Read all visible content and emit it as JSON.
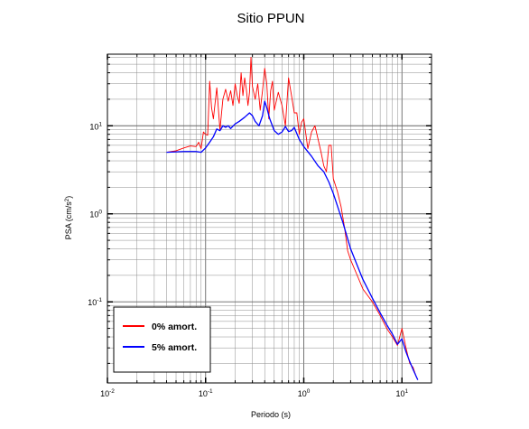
{
  "chart_data": {
    "type": "line",
    "title": "Sitio PPUN",
    "xlabel": "Periodo (s)",
    "ylabel": {
      "prefix": "PSA (cm/s",
      "exp": "2",
      "suffix": ")"
    },
    "xscale": "log",
    "yscale": "log",
    "xlim": [
      0.01,
      20
    ],
    "ylim": [
      0.012,
      65
    ],
    "grid": true,
    "legend_position": "bottom-left",
    "x_ticks": [
      {
        "base": "10",
        "exp": "-2"
      },
      {
        "base": "10",
        "exp": "-1"
      },
      {
        "base": "10",
        "exp": "0"
      },
      {
        "base": "10",
        "exp": "1"
      }
    ],
    "y_ticks": [
      {
        "base": "10",
        "exp": "-1"
      },
      {
        "base": "10",
        "exp": "0"
      },
      {
        "base": "10",
        "exp": "1"
      }
    ],
    "series": [
      {
        "name": "0% amort.",
        "color": "#ff0000",
        "x": [
          0.04,
          0.05,
          0.06,
          0.07,
          0.08,
          0.085,
          0.09,
          0.095,
          0.1,
          0.105,
          0.11,
          0.115,
          0.12,
          0.13,
          0.14,
          0.15,
          0.16,
          0.17,
          0.18,
          0.19,
          0.2,
          0.21,
          0.22,
          0.23,
          0.24,
          0.25,
          0.26,
          0.27,
          0.28,
          0.29,
          0.3,
          0.32,
          0.34,
          0.36,
          0.38,
          0.4,
          0.42,
          0.44,
          0.46,
          0.48,
          0.5,
          0.55,
          0.6,
          0.65,
          0.7,
          0.75,
          0.8,
          0.85,
          0.9,
          0.95,
          1.0,
          1.1,
          1.2,
          1.3,
          1.4,
          1.5,
          1.6,
          1.7,
          1.8,
          1.9,
          2.0,
          2.2,
          2.4,
          2.6,
          2.8,
          3.0,
          3.5,
          4.0,
          5.0,
          6.0,
          7.0,
          8.0,
          9.0,
          10.0,
          11.0,
          12.0,
          13.0,
          14.0
        ],
        "values": [
          5.0,
          5.2,
          5.6,
          5.9,
          5.8,
          6.5,
          5.5,
          8.5,
          8.0,
          7.8,
          32.0,
          16.0,
          12.0,
          27.0,
          9.0,
          20.0,
          26.0,
          19.0,
          25.0,
          17.0,
          30.0,
          22.0,
          18.0,
          40.0,
          22.0,
          35.0,
          26.0,
          17.0,
          24.0,
          60.0,
          28.0,
          20.0,
          30.0,
          15.0,
          25.0,
          45.0,
          30.0,
          12.0,
          25.0,
          32.0,
          15.0,
          24.0,
          17.0,
          10.0,
          35.0,
          22.0,
          14.0,
          14.0,
          8.0,
          11.0,
          12.0,
          5.5,
          8.5,
          10.0,
          7.0,
          5.0,
          3.5,
          3.0,
          6.0,
          6.0,
          2.5,
          1.8,
          1.2,
          0.7,
          0.38,
          0.3,
          0.2,
          0.14,
          0.1,
          0.07,
          0.05,
          0.04,
          0.032,
          0.05,
          0.03,
          0.02,
          0.018,
          0.014
        ]
      },
      {
        "name": "5% amort.",
        "color": "#0000ff",
        "x": [
          0.04,
          0.06,
          0.08,
          0.09,
          0.1,
          0.11,
          0.12,
          0.13,
          0.14,
          0.15,
          0.16,
          0.17,
          0.18,
          0.2,
          0.22,
          0.25,
          0.28,
          0.3,
          0.32,
          0.35,
          0.38,
          0.4,
          0.42,
          0.45,
          0.5,
          0.55,
          0.6,
          0.65,
          0.7,
          0.75,
          0.8,
          0.9,
          1.0,
          1.2,
          1.4,
          1.6,
          1.8,
          2.0,
          2.5,
          3.0,
          3.5,
          4.0,
          5.0,
          6.0,
          7.0,
          8.0,
          9.0,
          10.0,
          11.0,
          12.0,
          13.0,
          14.5
        ],
        "values": [
          5.0,
          5.1,
          5.1,
          5.0,
          5.6,
          6.5,
          7.5,
          9.2,
          8.8,
          10.0,
          9.6,
          10.0,
          9.3,
          10.5,
          11.2,
          12.5,
          14.0,
          13.0,
          11.2,
          10.0,
          13.0,
          19.0,
          16.0,
          12.0,
          8.8,
          8.0,
          8.5,
          9.8,
          8.6,
          8.8,
          9.6,
          7.0,
          5.8,
          4.5,
          3.5,
          3.0,
          2.3,
          1.7,
          0.8,
          0.4,
          0.26,
          0.18,
          0.11,
          0.075,
          0.055,
          0.043,
          0.033,
          0.038,
          0.027,
          0.021,
          0.017,
          0.013
        ]
      }
    ]
  }
}
